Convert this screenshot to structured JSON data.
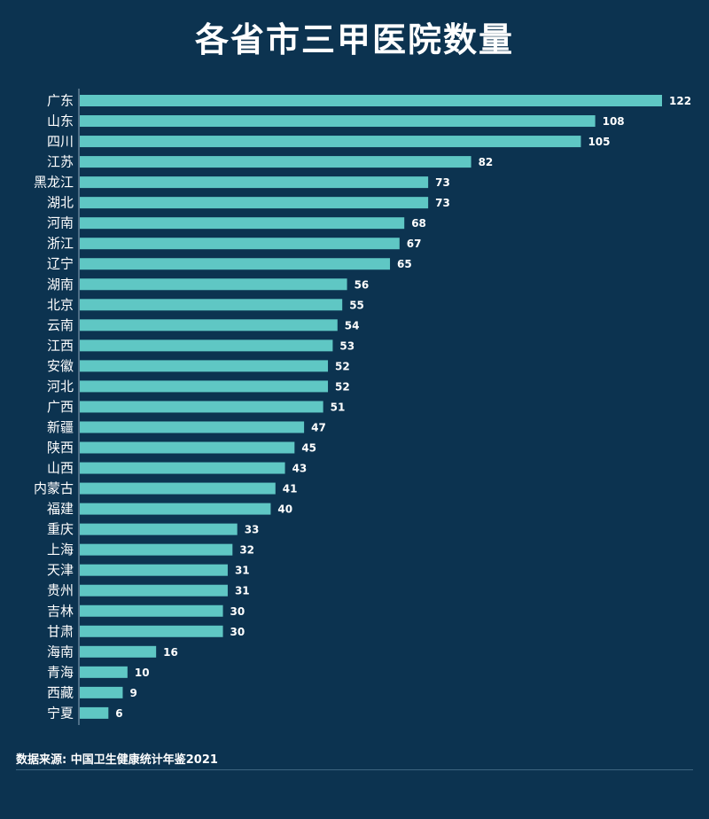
{
  "chart_data": {
    "type": "bar",
    "orientation": "horizontal",
    "title": "各省市三甲医院数量",
    "categories": [
      "广东",
      "山东",
      "四川",
      "江苏",
      "黑龙江",
      "湖北",
      "河南",
      "浙江",
      "辽宁",
      "湖南",
      "北京",
      "云南",
      "江西",
      "安徽",
      "河北",
      "广西",
      "新疆",
      "陕西",
      "山西",
      "内蒙古",
      "福建",
      "重庆",
      "上海",
      "天津",
      "贵州",
      "吉林",
      "甘肃",
      "海南",
      "青海",
      "西藏",
      "宁夏"
    ],
    "values": [
      122,
      108,
      105,
      82,
      73,
      73,
      68,
      67,
      65,
      56,
      55,
      54,
      53,
      52,
      52,
      51,
      47,
      45,
      43,
      41,
      40,
      33,
      32,
      31,
      31,
      30,
      30,
      16,
      10,
      9,
      6
    ],
    "xlim": [
      0,
      122
    ],
    "grid": false,
    "data_labels": true,
    "colors": {
      "background": "#0c3350",
      "bar": "#5fc7c4",
      "text": "#ffffff"
    }
  },
  "source": "数据来源: 中国卫生健康统计年鉴2021"
}
